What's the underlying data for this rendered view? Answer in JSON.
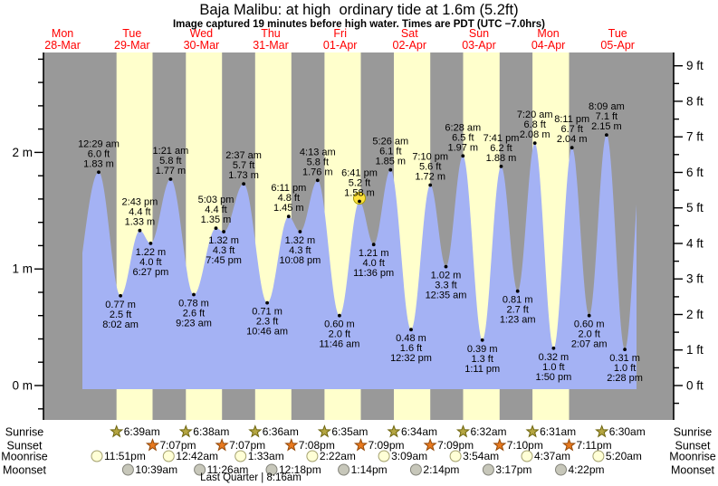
{
  "title": "Baja Malibu: at high  ordinary tide at 1.6m (5.2ft)",
  "subtitle": "Image captured 19 minutes before high water. Times are PDT (UTC −7.0hrs)",
  "colors": {
    "background": "#ffffff",
    "night_band": "#999999",
    "daylight_band": "#ffffcc",
    "tide_fill": "#a4b2f4",
    "axis": "#000000",
    "date_label": "#ff0000",
    "annotation_text": "#000000",
    "sunrise_star_fill": "#b5a642",
    "sunrise_star_stroke": "#6e650f",
    "sunset_star_fill": "#e8791e",
    "sunset_star_stroke": "#93490a",
    "moonrise_fill": "#ffffd6",
    "moonrise_stroke": "#a3a06e",
    "moonset_fill": "#c7c7ba",
    "moonset_stroke": "#83837a",
    "current_marker_fill": "#ffe23d",
    "current_marker_stroke": "#a89b00"
  },
  "chart_data": {
    "type": "area",
    "title": "Baja Malibu: at high  ordinary tide at 1.6m (5.2ft)",
    "subtitle": "Image captured 19 minutes before high water. Times are PDT (UTC −7.0hrs)",
    "x_axis": {
      "days": [
        {
          "weekday": "Mon",
          "date": "28-Mar"
        },
        {
          "weekday": "Tue",
          "date": "29-Mar"
        },
        {
          "weekday": "Wed",
          "date": "30-Mar"
        },
        {
          "weekday": "Thu",
          "date": "31-Mar"
        },
        {
          "weekday": "Fri",
          "date": "01-Apr"
        },
        {
          "weekday": "Sat",
          "date": "02-Apr"
        },
        {
          "weekday": "Sun",
          "date": "03-Apr"
        },
        {
          "weekday": "Mon",
          "date": "04-Apr"
        },
        {
          "weekday": "Tue",
          "date": "05-Apr"
        }
      ]
    },
    "y_axis_left": {
      "unit": "m",
      "major_ticks": [
        0,
        1,
        2
      ],
      "minor_step": 0.2,
      "label_format": "{v} m"
    },
    "y_axis_right": {
      "unit": "ft",
      "major_ticks": [
        0,
        1,
        2,
        3,
        4,
        5,
        6,
        7,
        8,
        9
      ],
      "minor_step": 0.5,
      "label_format": "{v} ft"
    },
    "tide_events": [
      {
        "t": 24.483,
        "h": 1.83,
        "time": "12:29 am",
        "ft": "6.0 ft",
        "m": "1.83 m",
        "type": "high"
      },
      {
        "t": 32.033,
        "h": 0.77,
        "time": "8:02 am",
        "ft": "2.5 ft",
        "m": "0.77 m",
        "type": "low"
      },
      {
        "t": 38.717,
        "h": 1.33,
        "time": "2:43 pm",
        "ft": "4.4 ft",
        "m": "1.33 m",
        "type": "high"
      },
      {
        "t": 42.45,
        "h": 1.22,
        "time": "6:27 pm",
        "ft": "4.0 ft",
        "m": "1.22 m",
        "type": "low"
      },
      {
        "t": 49.35,
        "h": 1.77,
        "time": "1:21 am",
        "ft": "5.8 ft",
        "m": "1.77 m",
        "type": "high"
      },
      {
        "t": 57.383,
        "h": 0.78,
        "time": "9:23 am",
        "ft": "2.6 ft",
        "m": "0.78 m",
        "type": "low"
      },
      {
        "t": 65.05,
        "h": 1.35,
        "time": "5:03 pm",
        "ft": "4.4 ft",
        "m": "1.35 m",
        "type": "high"
      },
      {
        "t": 67.75,
        "h": 1.32,
        "time": "7:45 pm",
        "ft": "4.3 ft",
        "m": "1.32 m",
        "type": "low"
      },
      {
        "t": 74.617,
        "h": 1.73,
        "time": "2:37 am",
        "ft": "5.7 ft",
        "m": "1.73 m",
        "type": "high"
      },
      {
        "t": 82.767,
        "h": 0.71,
        "time": "10:46 am",
        "ft": "2.3 ft",
        "m": "0.71 m",
        "type": "low"
      },
      {
        "t": 90.183,
        "h": 1.45,
        "time": "6:11 pm",
        "ft": "4.8 ft",
        "m": "1.45 m",
        "type": "high"
      },
      {
        "t": 94.133,
        "h": 1.32,
        "time": "10:08 pm",
        "ft": "4.3 ft",
        "m": "1.32 m",
        "type": "low"
      },
      {
        "t": 100.217,
        "h": 1.76,
        "time": "4:13 am",
        "ft": "5.8 ft",
        "m": "1.76 m",
        "type": "high"
      },
      {
        "t": 107.767,
        "h": 0.6,
        "time": "11:46 am",
        "ft": "2.0 ft",
        "m": "0.60 m",
        "type": "low"
      },
      {
        "t": 114.683,
        "h": 1.58,
        "time": "6:41 pm",
        "ft": "5.2 ft",
        "m": "1.58 m",
        "type": "high",
        "current": true
      },
      {
        "t": 119.6,
        "h": 1.21,
        "time": "11:36 pm",
        "ft": "4.0 ft",
        "m": "1.21 m",
        "type": "low"
      },
      {
        "t": 125.433,
        "h": 1.85,
        "time": "5:26 am",
        "ft": "6.1 ft",
        "m": "1.85 m",
        "type": "high"
      },
      {
        "t": 132.533,
        "h": 0.48,
        "time": "12:32 pm",
        "ft": "1.6 ft",
        "m": "0.48 m",
        "type": "low"
      },
      {
        "t": 139.167,
        "h": 1.72,
        "time": "7:10 pm",
        "ft": "5.6 ft",
        "m": "1.72 m",
        "type": "high"
      },
      {
        "t": 144.583,
        "h": 1.02,
        "time": "12:35 am",
        "ft": "3.3 ft",
        "m": "1.02 m",
        "type": "low"
      },
      {
        "t": 150.467,
        "h": 1.97,
        "time": "6:28 am",
        "ft": "6.5 ft",
        "m": "1.97 m",
        "type": "high"
      },
      {
        "t": 157.183,
        "h": 0.39,
        "time": "1:11 pm",
        "ft": "1.3 ft",
        "m": "0.39 m",
        "type": "low"
      },
      {
        "t": 163.683,
        "h": 1.88,
        "time": "7:41 pm",
        "ft": "6.2 ft",
        "m": "1.88 m",
        "type": "high"
      },
      {
        "t": 169.383,
        "h": 0.81,
        "time": "1:23 am",
        "ft": "2.7 ft",
        "m": "0.81 m",
        "type": "low"
      },
      {
        "t": 175.333,
        "h": 2.08,
        "time": "7:20 am",
        "ft": "6.8 ft",
        "m": "2.08 m",
        "type": "high"
      },
      {
        "t": 181.833,
        "h": 0.32,
        "time": "1:50 pm",
        "ft": "1.0 ft",
        "m": "0.32 m",
        "type": "low"
      },
      {
        "t": 188.183,
        "h": 2.04,
        "time": "8:11 pm",
        "ft": "6.7 ft",
        "m": "2.04 m",
        "type": "high"
      },
      {
        "t": 194.117,
        "h": 0.6,
        "time": "2:07 am",
        "ft": "2.0 ft",
        "m": "0.60 m",
        "type": "low"
      },
      {
        "t": 200.15,
        "h": 2.15,
        "time": "8:09 am",
        "ft": "7.1 ft",
        "m": "2.15 m",
        "type": "high"
      },
      {
        "t": 206.467,
        "h": 0.31,
        "time": "2:28 pm",
        "ft": "1.0 ft",
        "m": "0.31 m",
        "type": "low"
      }
    ],
    "curve_padding_events": [
      {
        "t": 13.5,
        "h": 0.5
      },
      {
        "t": 212.9,
        "h": 2.1
      }
    ],
    "curve_clip_hours": {
      "start": 18.85,
      "end": 210.5
    },
    "almanac": {
      "rows": [
        {
          "id": "sunrise",
          "label": "Sunrise",
          "icon": "sunrise-star-icon",
          "items": [
            {
              "t": 30.65,
              "time": "6:39am"
            },
            {
              "t": 54.633,
              "time": "6:38am"
            },
            {
              "t": 78.6,
              "time": "6:36am"
            },
            {
              "t": 102.583,
              "time": "6:35am"
            },
            {
              "t": 126.567,
              "time": "6:34am"
            },
            {
              "t": 150.533,
              "time": "6:32am"
            },
            {
              "t": 174.517,
              "time": "6:31am"
            },
            {
              "t": 198.5,
              "time": "6:30am"
            }
          ]
        },
        {
          "id": "sunset",
          "label": "Sunset",
          "icon": "sunset-star-icon",
          "items": [
            {
              "t": 43.117,
              "time": "7:07pm"
            },
            {
              "t": 67.117,
              "time": "7:07pm"
            },
            {
              "t": 91.133,
              "time": "7:08pm"
            },
            {
              "t": 115.15,
              "time": "7:09pm"
            },
            {
              "t": 139.15,
              "time": "7:09pm"
            },
            {
              "t": 163.167,
              "time": "7:10pm"
            },
            {
              "t": 187.183,
              "time": "7:11pm"
            }
          ]
        },
        {
          "id": "moonrise",
          "label": "Moonrise",
          "icon": "moonrise-circle-icon",
          "items": [
            {
              "t": 23.85,
              "time": "11:51pm"
            },
            {
              "t": 48.7,
              "time": "12:42am"
            },
            {
              "t": 73.55,
              "time": "1:33am"
            },
            {
              "t": 98.367,
              "time": "2:22am"
            },
            {
              "t": 123.15,
              "time": "3:09am"
            },
            {
              "t": 147.9,
              "time": "3:54am"
            },
            {
              "t": 172.617,
              "time": "4:37am"
            },
            {
              "t": 197.333,
              "time": "5:20am"
            }
          ]
        },
        {
          "id": "moonset",
          "label": "Moonset",
          "icon": "moonset-circle-icon",
          "items": [
            {
              "t": 34.65,
              "time": "10:39am"
            },
            {
              "t": 59.433,
              "time": "11:26am"
            },
            {
              "t": 84.3,
              "time": "12:18pm"
            },
            {
              "t": 109.233,
              "time": "1:14pm"
            },
            {
              "t": 134.233,
              "time": "2:14pm"
            },
            {
              "t": 159.283,
              "time": "3:17pm"
            },
            {
              "t": 184.367,
              "time": "4:22pm"
            }
          ]
        }
      ],
      "moon_phase_note": "Last Quarter | 8:16am",
      "moon_phase_note_t": 77.1
    }
  }
}
